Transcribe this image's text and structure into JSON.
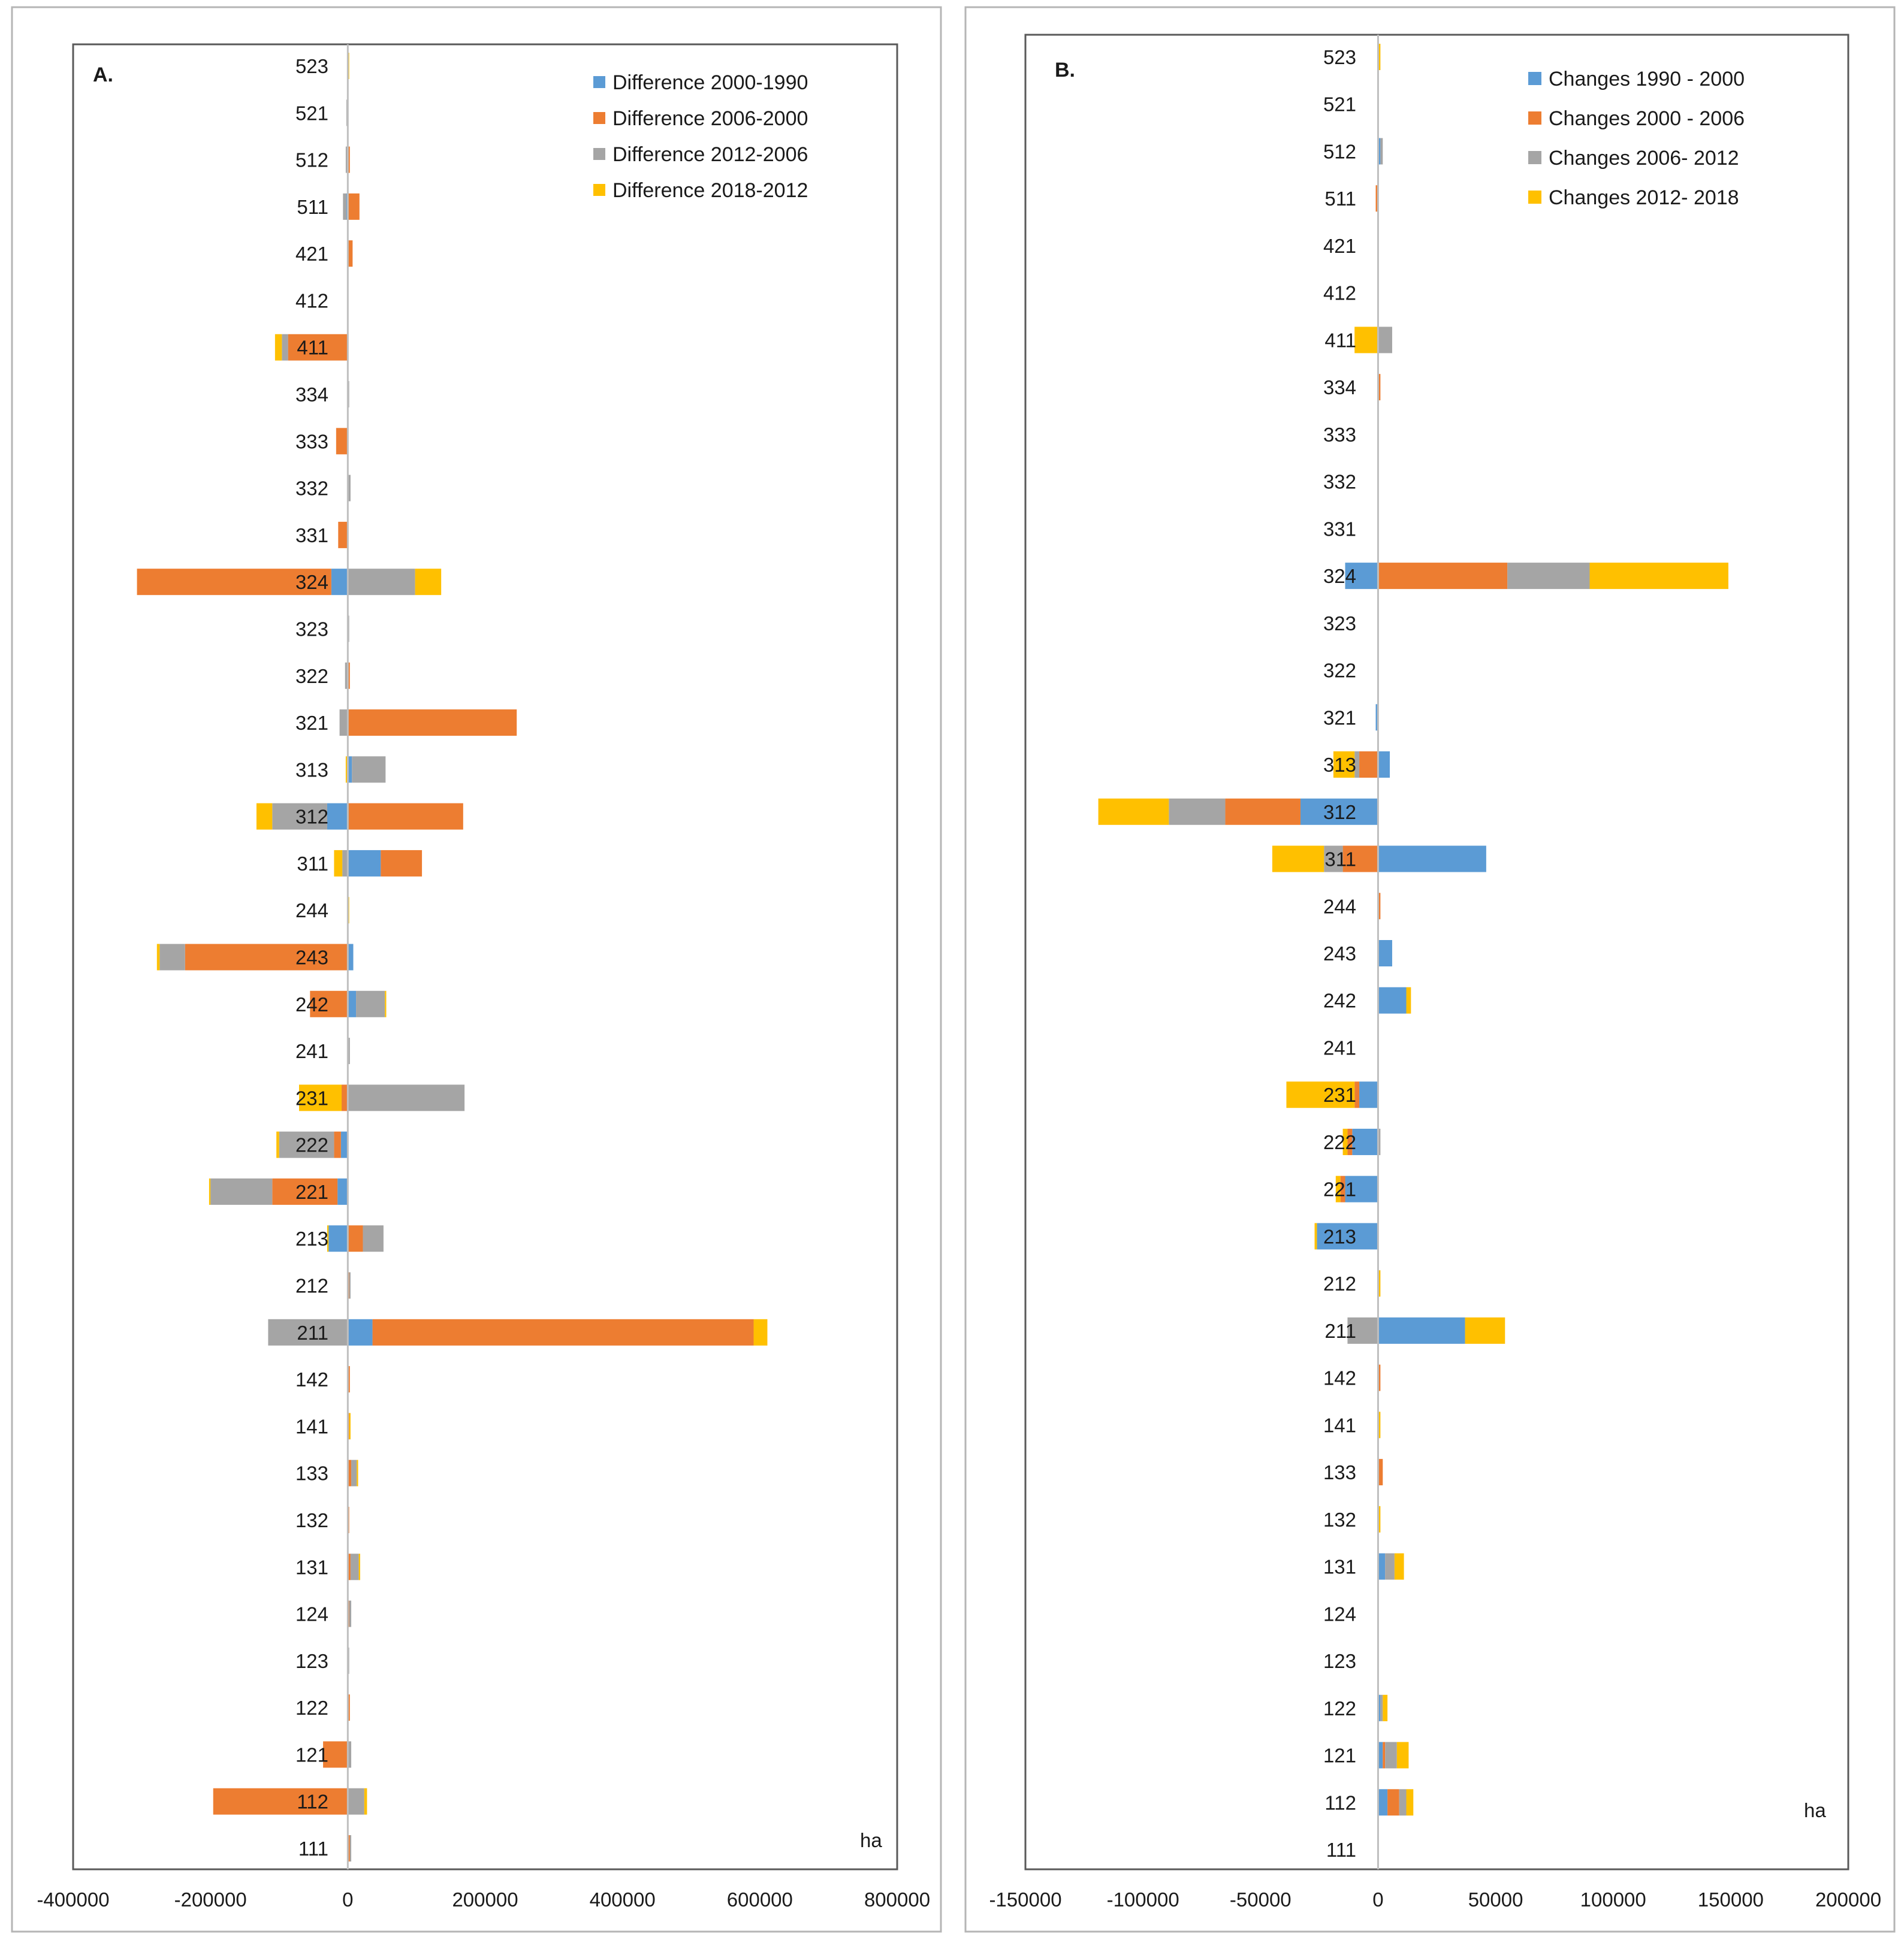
{
  "colors": {
    "series1": "#5B9BD5",
    "series2": "#ED7D31",
    "series3": "#A5A5A5",
    "series4": "#FFC000"
  },
  "chart_data": [
    {
      "type": "bar",
      "orientation": "horizontal",
      "stacked": true,
      "panel_label": "A.",
      "unit_label": "ha",
      "xlim": [
        -400000,
        800000
      ],
      "x_ticks": [
        "-400000",
        "-200000",
        "0",
        "200000",
        "400000",
        "600000",
        "800000"
      ],
      "categories": [
        "523",
        "521",
        "512",
        "511",
        "421",
        "412",
        "411",
        "334",
        "333",
        "332",
        "331",
        "324",
        "323",
        "322",
        "321",
        "313",
        "312",
        "311",
        "244",
        "243",
        "242",
        "241",
        "231",
        "222",
        "221",
        "213",
        "212",
        "211",
        "142",
        "141",
        "133",
        "132",
        "131",
        "124",
        "123",
        "122",
        "121",
        "112",
        "111"
      ],
      "series": [
        {
          "name": "Difference 2000-1990",
          "values": [
            0,
            0,
            0,
            -2000,
            0,
            0,
            0,
            0,
            0,
            0,
            0,
            -24000,
            0,
            0,
            0,
            6000,
            -30000,
            48000,
            0,
            8000,
            12000,
            0,
            0,
            -10000,
            -15000,
            -28000,
            0,
            36000,
            0,
            0,
            0,
            0,
            0,
            0,
            0,
            0,
            0,
            0,
            0
          ]
        },
        {
          "name": "Difference 2006-2000",
          "values": [
            0,
            0,
            3000,
            17000,
            7000,
            0,
            -87000,
            0,
            -17000,
            0,
            -14000,
            -283000,
            0,
            3000,
            246000,
            0,
            168000,
            60000,
            0,
            -237000,
            -55000,
            0,
            -9000,
            -10000,
            -95000,
            22000,
            2000,
            555000,
            3000,
            2000,
            5000,
            2000,
            4000,
            2000,
            0,
            3000,
            -36000,
            -196000,
            3000
          ]
        },
        {
          "name": "Difference 2012-2006",
          "values": [
            0,
            -2000,
            -3000,
            -5000,
            0,
            0,
            -9000,
            2000,
            0,
            4000,
            0,
            98000,
            2000,
            -4000,
            -12000,
            49000,
            -80000,
            -8000,
            0,
            -37000,
            42000,
            3000,
            170000,
            -80000,
            -90000,
            30000,
            2000,
            -116000,
            0,
            0,
            8000,
            0,
            12000,
            3000,
            2000,
            0,
            5000,
            24000,
            2000
          ]
        },
        {
          "name": "Difference 2018-2012",
          "values": [
            2000,
            0,
            0,
            0,
            0,
            0,
            -10000,
            0,
            0,
            0,
            0,
            38000,
            0,
            0,
            0,
            -3000,
            -23000,
            -12000,
            2000,
            -4000,
            2000,
            0,
            -62000,
            -4000,
            -2000,
            -2000,
            0,
            20000,
            0,
            2000,
            2000,
            0,
            2000,
            0,
            0,
            0,
            0,
            4000,
            0
          ]
        }
      ]
    },
    {
      "type": "bar",
      "orientation": "horizontal",
      "stacked": true,
      "panel_label": "B.",
      "unit_label": "ha",
      "xlim": [
        -150000,
        200000
      ],
      "x_ticks": [
        "-150000",
        "-100000",
        "-50000",
        "0",
        "50000",
        "100000",
        "150000",
        "200000"
      ],
      "categories": [
        "523",
        "521",
        "512",
        "511",
        "421",
        "412",
        "411",
        "334",
        "333",
        "332",
        "331",
        "324",
        "323",
        "322",
        "321",
        "313",
        "312",
        "311",
        "244",
        "243",
        "242",
        "241",
        "231",
        "222",
        "221",
        "213",
        "212",
        "211",
        "142",
        "141",
        "133",
        "132",
        "131",
        "124",
        "123",
        "122",
        "121",
        "112",
        "111"
      ],
      "series": [
        {
          "name": "Changes  1990 - 2000",
          "values": [
            0,
            0,
            1000,
            0,
            0,
            0,
            0,
            0,
            0,
            0,
            0,
            -14000,
            0,
            0,
            -1000,
            5000,
            -33000,
            46000,
            0,
            6000,
            12000,
            0,
            -8000,
            -11000,
            -14000,
            -26000,
            0,
            37000,
            0,
            0,
            0,
            0,
            3000,
            0,
            0,
            1000,
            2000,
            4000,
            0
          ]
        },
        {
          "name": "Changes  2000 - 2006",
          "values": [
            0,
            0,
            0,
            -1000,
            0,
            0,
            0,
            1000,
            0,
            0,
            0,
            55000,
            0,
            0,
            0,
            -8000,
            -32000,
            -15000,
            1000,
            0,
            0,
            0,
            -2000,
            -2000,
            -2000,
            0,
            0,
            0,
            1000,
            0,
            2000,
            0,
            0,
            0,
            0,
            0,
            1000,
            5000,
            0
          ]
        },
        {
          "name": "Changes  2006- 2012",
          "values": [
            0,
            0,
            1000,
            0,
            0,
            0,
            6000,
            0,
            0,
            0,
            0,
            35000,
            0,
            0,
            0,
            -2000,
            -24000,
            -8000,
            0,
            0,
            0,
            0,
            0,
            1000,
            0,
            0,
            0,
            -13000,
            0,
            0,
            0,
            0,
            4000,
            0,
            0,
            1000,
            5000,
            3000,
            0
          ]
        },
        {
          "name": "Changes  2012- 2018",
          "values": [
            1000,
            0,
            0,
            0,
            0,
            0,
            -10000,
            0,
            0,
            0,
            0,
            59000,
            0,
            0,
            0,
            -9000,
            -30000,
            -22000,
            0,
            0,
            2000,
            0,
            -29000,
            -2000,
            -2000,
            -1000,
            1000,
            17000,
            0,
            1000,
            0,
            1000,
            4000,
            0,
            0,
            2000,
            5000,
            3000,
            0
          ]
        }
      ]
    }
  ]
}
